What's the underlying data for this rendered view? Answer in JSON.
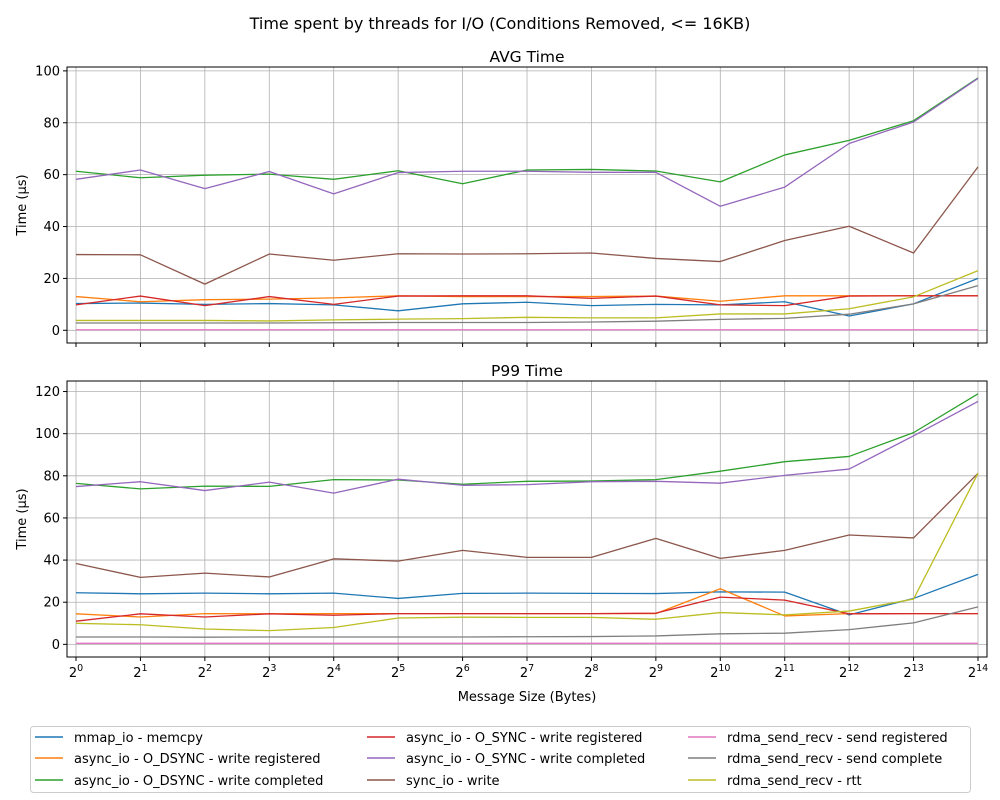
{
  "figure": {
    "suptitle": "Time spent by threads for I/O (Conditions Removed, <= 16KB)"
  },
  "chart_data": [
    {
      "type": "line",
      "title": "AVG Time",
      "xlabel": "",
      "ylabel": "Time (µs)",
      "x_scale": "log2",
      "x": [
        1,
        2,
        4,
        8,
        16,
        32,
        64,
        128,
        256,
        512,
        1024,
        2048,
        4096,
        8192,
        16384
      ],
      "x_tick_exponents": [
        "0",
        "1",
        "2",
        "3",
        "4",
        "5",
        "6",
        "7",
        "8",
        "9",
        "10",
        "11",
        "12",
        "13",
        "14"
      ],
      "x_tick_labels_visible": false,
      "ylim": [
        -4.9,
        101.5
      ],
      "yticks": [
        0,
        20,
        40,
        60,
        80,
        100
      ],
      "grid": true,
      "series": [
        {
          "name": "mmap_io - memcpy",
          "color": "#1f77b4",
          "values": [
            10.3,
            10.5,
            10,
            10.3,
            9.8,
            7.5,
            10.2,
            10.8,
            9.5,
            10,
            9.8,
            11,
            5.5,
            10.2,
            20
          ]
        },
        {
          "name": "async_io - O_DSYNC - write registered",
          "color": "#ff7f0e",
          "values": [
            13,
            11,
            11.8,
            12,
            12.5,
            13.3,
            13,
            13,
            13,
            13.2,
            11.2,
            13.3,
            13.3,
            13.3,
            13.3
          ]
        },
        {
          "name": "async_io - O_DSYNC - write completed",
          "color": "#2ca02c",
          "values": [
            61.3,
            58.8,
            59.8,
            60.2,
            58.2,
            61.5,
            56.5,
            61.8,
            62,
            61.4,
            57.2,
            67.6,
            73.2,
            80.8,
            97.3
          ]
        },
        {
          "name": "async_io - O_SYNC - write registered",
          "color": "#d62728",
          "values": [
            9.8,
            13.2,
            9.5,
            13,
            10,
            13.2,
            13.3,
            13.3,
            12.3,
            13.2,
            9.8,
            9.5,
            13.2,
            13.3,
            13.3
          ]
        },
        {
          "name": "async_io - O_SYNC - write completed",
          "color": "#9467bd",
          "values": [
            58.2,
            61.8,
            54.6,
            61.2,
            52.6,
            60.8,
            61.3,
            61.3,
            60.9,
            60.9,
            47.8,
            55.2,
            72,
            80.3,
            97.1
          ]
        },
        {
          "name": "sync_io - write",
          "color": "#8c564b",
          "values": [
            29.2,
            29.1,
            17.8,
            29.4,
            27,
            29.5,
            29.4,
            29.5,
            29.8,
            27.7,
            26.5,
            34.6,
            40.1,
            29.8,
            63
          ]
        },
        {
          "name": "rdma_send_recv - send registered",
          "color": "#e377c2",
          "values": [
            0.2,
            0.2,
            0.2,
            0.2,
            0.2,
            0.2,
            0.2,
            0.2,
            0.2,
            0.2,
            0.2,
            0.2,
            0.2,
            0.2,
            0.2
          ]
        },
        {
          "name": "rdma_send_recv - send complete",
          "color": "#7f7f7f",
          "values": [
            2.8,
            2.8,
            2.8,
            2.8,
            2.9,
            3,
            3,
            3,
            3.2,
            3.5,
            4.2,
            4.6,
            6.2,
            10.2,
            17.2
          ]
        },
        {
          "name": "rdma_send_recv - rtt",
          "color": "#bcbd22",
          "values": [
            3.8,
            3.8,
            3.8,
            3.6,
            4,
            4.3,
            4.5,
            5,
            4.8,
            4.8,
            6.3,
            6.3,
            8.3,
            12.9,
            23
          ]
        }
      ]
    },
    {
      "type": "line",
      "title": "P99 Time",
      "xlabel": "Message Size (Bytes)",
      "ylabel": "Time (µs)",
      "x_scale": "log2",
      "x": [
        1,
        2,
        4,
        8,
        16,
        32,
        64,
        128,
        256,
        512,
        1024,
        2048,
        4096,
        8192,
        16384
      ],
      "x_tick_exponents": [
        "0",
        "1",
        "2",
        "3",
        "4",
        "5",
        "6",
        "7",
        "8",
        "9",
        "10",
        "11",
        "12",
        "13",
        "14"
      ],
      "x_tick_labels_visible": true,
      "ylim": [
        -6,
        125
      ],
      "yticks": [
        0,
        20,
        40,
        60,
        80,
        100,
        120
      ],
      "grid": true,
      "series": [
        {
          "name": "mmap_io - memcpy",
          "color": "#1f77b4",
          "values": [
            24.5,
            24,
            24.3,
            24,
            24.3,
            21.8,
            24.2,
            24.3,
            24.2,
            24.1,
            24.9,
            24.8,
            14,
            21.8,
            33.2
          ]
        },
        {
          "name": "async_io - O_DSYNC - write registered",
          "color": "#ff7f0e",
          "values": [
            14.5,
            13,
            14.6,
            14.5,
            14.6,
            14.6,
            14.6,
            14.6,
            14.6,
            14.6,
            26.4,
            13.5,
            14.6,
            14.6,
            14.6
          ]
        },
        {
          "name": "async_io - O_DSYNC - write completed",
          "color": "#2ca02c",
          "values": [
            76.4,
            73.8,
            75.1,
            75,
            78.2,
            78,
            76,
            77.4,
            77.5,
            78.2,
            82.2,
            86.7,
            89.2,
            100.5,
            118.9
          ]
        },
        {
          "name": "async_io - O_SYNC - write registered",
          "color": "#d62728",
          "values": [
            11,
            14.5,
            13,
            14.5,
            13.8,
            14.6,
            14.6,
            14.6,
            14.6,
            14.8,
            22.4,
            21,
            14.5,
            14.6,
            14.6
          ]
        },
        {
          "name": "async_io - O_SYNC - write completed",
          "color": "#9467bd",
          "values": [
            74.9,
            77.2,
            73,
            77,
            71.8,
            78.4,
            75.5,
            75.8,
            77.2,
            77.4,
            76.5,
            80.2,
            83.2,
            99,
            115.3
          ]
        },
        {
          "name": "sync_io - write",
          "color": "#8c564b",
          "values": [
            38.4,
            31.8,
            33.8,
            32,
            40.6,
            39.5,
            44.6,
            41.3,
            41.3,
            50.3,
            40.8,
            44.6,
            51.9,
            50.5,
            81.2
          ]
        },
        {
          "name": "rdma_send_recv - send registered",
          "color": "#e377c2",
          "values": [
            0.5,
            0.5,
            0.5,
            0.5,
            0.5,
            0.5,
            0.5,
            0.5,
            0.5,
            0.5,
            0.5,
            0.5,
            0.5,
            0.5,
            0.5
          ]
        },
        {
          "name": "rdma_send_recv - send complete",
          "color": "#7f7f7f",
          "values": [
            3.5,
            3.5,
            3.4,
            3.5,
            3.5,
            3.5,
            3.5,
            3.6,
            3.7,
            4,
            5,
            5.3,
            7,
            10.2,
            17.8
          ]
        },
        {
          "name": "rdma_send_recv - rtt",
          "color": "#bcbd22",
          "values": [
            10,
            9.3,
            7.3,
            6.5,
            8,
            12.5,
            12.9,
            12.8,
            12.8,
            11.9,
            15.1,
            14,
            15.8,
            21.5,
            81.2
          ]
        }
      ]
    }
  ],
  "legend": {
    "placement": "bottom",
    "columns": 3
  }
}
